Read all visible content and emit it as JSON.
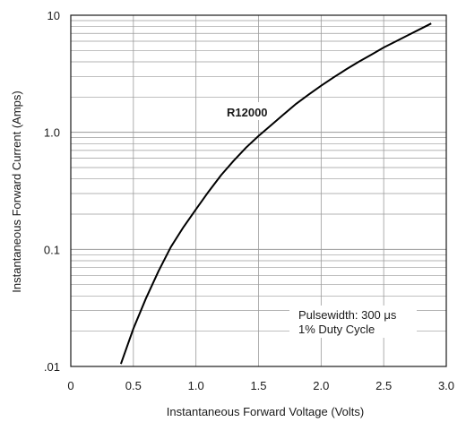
{
  "chart_data": {
    "type": "line",
    "title": "",
    "xlabel": "Instantaneous Forward Voltage (Volts)",
    "ylabel": "Instantaneous Forward Current (Amps)",
    "x_scale": "linear",
    "y_scale": "log",
    "xlim": [
      0,
      3.0
    ],
    "ylim": [
      0.01,
      10
    ],
    "x_ticks": [
      0,
      0.5,
      1.0,
      1.5,
      2.0,
      2.5,
      3.0
    ],
    "x_tick_labels": [
      "0",
      "0.5",
      "1.0",
      "1.5",
      "2.0",
      "2.5",
      "3.0"
    ],
    "y_ticks": [
      0.01,
      0.1,
      1.0,
      10
    ],
    "y_tick_labels": [
      ".01",
      "0.1",
      "1.0",
      "10"
    ],
    "grid": true,
    "line_color": "#000000",
    "grid_color": "#9a9a9a",
    "series": [
      {
        "name": "R12000",
        "x": [
          0.4,
          0.5,
          0.6,
          0.7,
          0.8,
          0.9,
          1.0,
          1.1,
          1.2,
          1.3,
          1.4,
          1.5,
          1.6,
          1.7,
          1.8,
          1.9,
          2.0,
          2.1,
          2.2,
          2.3,
          2.4,
          2.5,
          2.6,
          2.7,
          2.8,
          2.88
        ],
        "y": [
          0.0105,
          0.021,
          0.038,
          0.065,
          0.105,
          0.155,
          0.22,
          0.31,
          0.43,
          0.57,
          0.74,
          0.93,
          1.15,
          1.42,
          1.75,
          2.1,
          2.5,
          2.95,
          3.45,
          4.0,
          4.6,
          5.3,
          6.0,
          6.8,
          7.7,
          8.5
        ]
      }
    ],
    "annotations": [
      "Pulsewidth: 300 μs",
      "1% Duty Cycle"
    ]
  }
}
